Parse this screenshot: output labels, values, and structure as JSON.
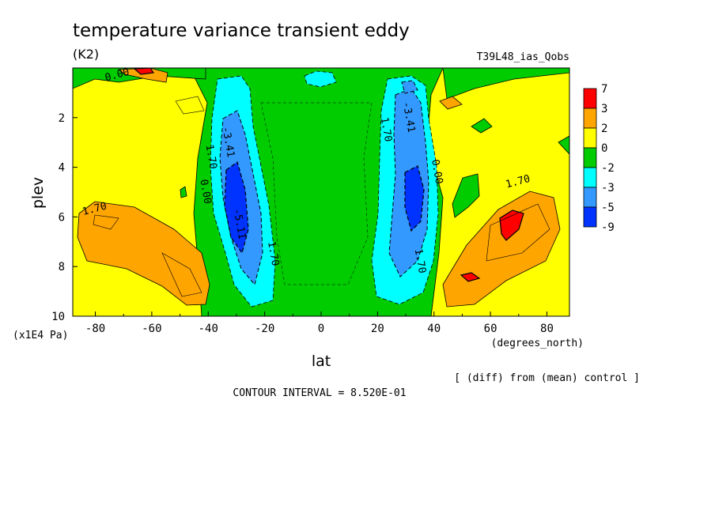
{
  "chart_data": {
    "type": "heatmap",
    "title": "temperature variance transient eddy",
    "unit": "(K2)",
    "experiment": "T39L48_ias_Qobs",
    "xlabel": "lat",
    "xunit": "(degrees_north)",
    "ylabel": "plev",
    "yunit": "(x1E4 Pa)",
    "xlim": [
      -88,
      88
    ],
    "ylim": [
      10,
      0
    ],
    "x_ticks": [
      -80,
      -60,
      -40,
      -20,
      0,
      20,
      40,
      60,
      80
    ],
    "y_ticks": [
      2,
      4,
      6,
      8,
      10
    ],
    "comparison_note": "[ (diff) from (mean) control ]",
    "contour_interval_text": "CONTOUR INTERVAL = 8.520E-01",
    "colorbar": {
      "labels": [
        "7",
        "3",
        "2",
        "0",
        "-2",
        "-3",
        "-5",
        "-9"
      ],
      "colors": [
        "#ff0000",
        "#ffa500",
        "#ffff00",
        "#00cc00",
        "#00ffff",
        "#3399ff",
        "#0033ff"
      ]
    },
    "contour_labels": [
      {
        "text": "0.00",
        "lat": -72,
        "plev": 0.4
      },
      {
        "text": "1.70",
        "lat": -80,
        "plev": 5.8
      },
      {
        "text": "1.70",
        "lat": -40,
        "plev": 3.6
      },
      {
        "text": "0.00",
        "lat": -42,
        "plev": 5.0
      },
      {
        "text": "-3.41",
        "lat": -34,
        "plev": 3.0
      },
      {
        "text": "-5.11",
        "lat": -30,
        "plev": 6.3
      },
      {
        "text": "1.70",
        "lat": -18,
        "plev": 7.5
      },
      {
        "text": "1.70",
        "lat": 22,
        "plev": 2.5
      },
      {
        "text": "-3.41",
        "lat": 30,
        "plev": 2.0
      },
      {
        "text": "0.00",
        "lat": 40,
        "plev": 4.2
      },
      {
        "text": "1.70",
        "lat": 34,
        "plev": 7.8
      },
      {
        "text": "1.70",
        "lat": 70,
        "plev": 4.7
      }
    ],
    "features": [
      {
        "level": "-5",
        "lat": -31,
        "plev": 5.0
      },
      {
        "level": "-5",
        "lat": 32,
        "plev": 5.0
      },
      {
        "level": "7",
        "lat": 67,
        "plev": 6.4
      },
      {
        "level": "7",
        "lat": 52,
        "plev": 8.6
      },
      {
        "level": "3",
        "lat": -62,
        "plev": 7.2
      },
      {
        "level": "3",
        "lat": 64,
        "plev": 6.8
      }
    ]
  }
}
